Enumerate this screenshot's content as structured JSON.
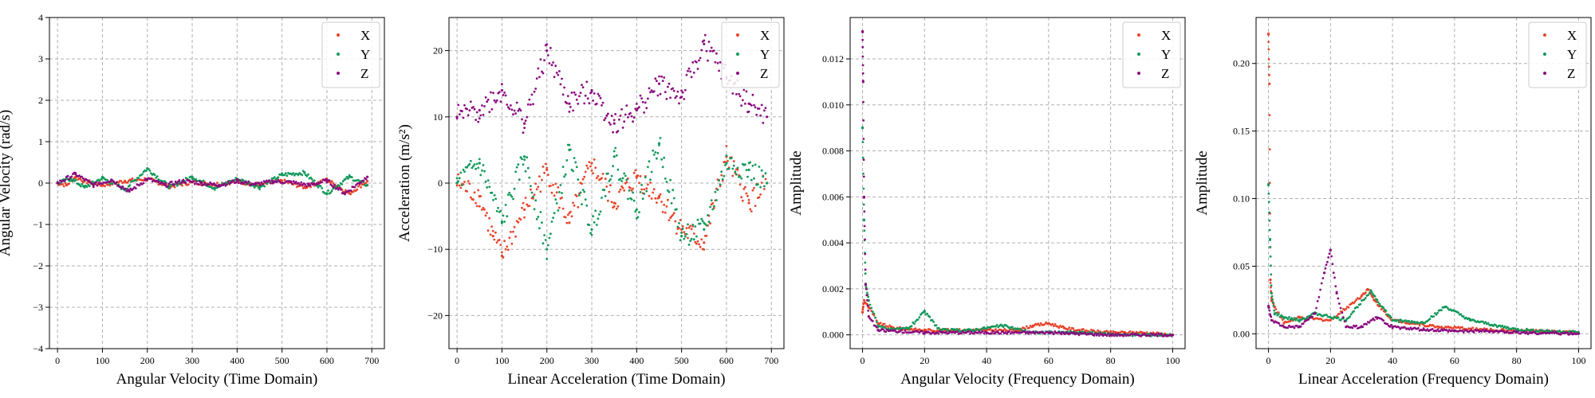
{
  "colors": {
    "X": "#e8432a",
    "Y": "#12985a",
    "Z": "#8b0a7f"
  },
  "chart_data": [
    {
      "type": "scatter",
      "xlabel": "Angular Velocity (Time Domain)",
      "ylabel": "Angular Velocity (rad/s)",
      "xlim": [
        -18,
        728
      ],
      "ylim": [
        -4,
        4
      ],
      "xticks": [
        0,
        100,
        200,
        300,
        400,
        500,
        600,
        700
      ],
      "yticks": [
        -4,
        -3,
        -2,
        -1,
        0,
        1,
        2,
        3,
        4
      ],
      "grid": true,
      "legend": "top-right",
      "series": [
        {
          "name": "X",
          "x": [
            0,
            20,
            40,
            60,
            100,
            150,
            200,
            250,
            300,
            350,
            400,
            450,
            500,
            550,
            600,
            650,
            690
          ],
          "y": [
            0,
            -0.05,
            0.15,
            0.05,
            -0.05,
            0.05,
            0.1,
            -0.08,
            0.02,
            -0.03,
            0.04,
            -0.05,
            0.05,
            -0.1,
            0.08,
            -0.25,
            0.05
          ]
        },
        {
          "name": "Y",
          "x": [
            0,
            30,
            60,
            100,
            150,
            200,
            250,
            300,
            350,
            400,
            450,
            500,
            550,
            600,
            650,
            690
          ],
          "y": [
            0,
            0.1,
            -0.1,
            0.12,
            -0.15,
            0.35,
            -0.1,
            0.15,
            -0.12,
            0.1,
            -0.1,
            0.2,
            0.25,
            -0.25,
            0.15,
            -0.05
          ]
        },
        {
          "name": "Z",
          "x": [
            0,
            40,
            80,
            120,
            160,
            200,
            240,
            280,
            320,
            360,
            400,
            440,
            480,
            520,
            560,
            600,
            640,
            690
          ],
          "y": [
            0,
            0.22,
            -0.05,
            0.08,
            -0.2,
            0.1,
            -0.05,
            0.05,
            0.0,
            -0.05,
            0.05,
            -0.03,
            0.04,
            0.02,
            -0.05,
            0.06,
            -0.25,
            0.15
          ]
        }
      ]
    },
    {
      "type": "scatter",
      "xlabel": "Linear Acceleration (Time Domain)",
      "ylabel": "Acceleration (m/s²)",
      "xlim": [
        -18,
        728
      ],
      "ylim": [
        -25,
        25
      ],
      "xticks": [
        0,
        100,
        200,
        300,
        400,
        500,
        600,
        700
      ],
      "yticks": [
        -20,
        -10,
        0,
        10,
        20
      ],
      "grid": true,
      "legend": "top-right",
      "series": [
        {
          "name": "X",
          "x": [
            0,
            50,
            80,
            100,
            150,
            200,
            250,
            300,
            350,
            400,
            450,
            500,
            550,
            600,
            650,
            690
          ],
          "y": [
            0,
            -2,
            -8,
            -11,
            -4,
            2,
            -6,
            3,
            -3,
            1,
            -2,
            -7,
            -9,
            4,
            -3,
            0
          ]
        },
        {
          "name": "Y",
          "x": [
            0,
            50,
            100,
            150,
            200,
            250,
            300,
            350,
            400,
            450,
            500,
            550,
            600,
            650,
            690
          ],
          "y": [
            0,
            3,
            -6,
            4,
            -10,
            5,
            -7,
            4,
            -4,
            6,
            -8,
            -7,
            3,
            2,
            0
          ]
        },
        {
          "name": "Z",
          "x": [
            0,
            50,
            100,
            150,
            200,
            250,
            300,
            350,
            400,
            450,
            500,
            550,
            600,
            650,
            690
          ],
          "y": [
            10,
            11,
            14,
            9,
            20,
            12,
            14,
            9,
            11,
            15,
            13,
            21,
            16,
            12,
            10
          ]
        }
      ]
    },
    {
      "type": "scatter",
      "xlabel": "Angular Velocity (Frequency Domain)",
      "ylabel": "Amplitude",
      "xlim": [
        -4,
        104
      ],
      "ylim": [
        -0.0006,
        0.0138
      ],
      "xticks": [
        0,
        20,
        40,
        60,
        80,
        100
      ],
      "yticks": [
        0.0,
        0.002,
        0.004,
        0.006,
        0.008,
        0.01,
        0.012
      ],
      "ytick_labels": [
        "0.000",
        "0.002",
        "0.004",
        "0.006",
        "0.008",
        "0.010",
        "0.012"
      ],
      "grid": true,
      "legend": "top-right",
      "series": [
        {
          "name": "X",
          "x": [
            0,
            0.5,
            2,
            5,
            10,
            20,
            30,
            40,
            50,
            55,
            60,
            65,
            70,
            80,
            90,
            100
          ],
          "y": [
            0.001,
            0.0015,
            0.0012,
            0.0005,
            0.0003,
            0.0002,
            0.0002,
            0.0002,
            0.0002,
            0.0004,
            0.0005,
            0.0003,
            0.0002,
            0.0001,
            0.0001,
            0.0
          ]
        },
        {
          "name": "Y",
          "x": [
            0,
            0.5,
            1,
            2,
            5,
            10,
            15,
            20,
            25,
            35,
            45,
            55,
            70,
            85,
            100
          ],
          "y": [
            0.009,
            0.005,
            0.0022,
            0.0015,
            0.0004,
            0.0002,
            0.0003,
            0.001,
            0.0002,
            0.0002,
            0.0004,
            0.0001,
            0.0001,
            0.0,
            0.0
          ]
        },
        {
          "name": "Z",
          "x": [
            0,
            0.2,
            0.5,
            1,
            2,
            5,
            20,
            40,
            60,
            80,
            100
          ],
          "y": [
            0.0132,
            0.011,
            0.006,
            0.0022,
            0.0008,
            0.0002,
            0.0001,
            0.0001,
            0.0001,
            0.0,
            0.0
          ]
        }
      ]
    },
    {
      "type": "scatter",
      "xlabel": "Linear Acceleration (Frequency Domain)",
      "ylabel": "Amplitude",
      "xlim": [
        -4,
        104
      ],
      "ylim": [
        -0.011,
        0.234
      ],
      "xticks": [
        0,
        20,
        40,
        60,
        80,
        100
      ],
      "yticks": [
        0.0,
        0.05,
        0.1,
        0.15,
        0.2
      ],
      "ytick_labels": [
        "0.00",
        "0.05",
        "0.10",
        "0.15",
        "0.20"
      ],
      "grid": true,
      "legend": "top-right",
      "series": [
        {
          "name": "X",
          "x": [
            0,
            0.3,
            0.6,
            1,
            2,
            5,
            10,
            20,
            30,
            32,
            34,
            40,
            55,
            70,
            85,
            100
          ],
          "y": [
            0.222,
            0.185,
            0.04,
            0.025,
            0.02,
            0.008,
            0.012,
            0.01,
            0.028,
            0.033,
            0.025,
            0.01,
            0.005,
            0.003,
            0.002,
            0.001
          ]
        },
        {
          "name": "Y",
          "x": [
            0,
            0.5,
            1,
            2,
            5,
            10,
            15,
            25,
            33,
            35,
            40,
            50,
            57,
            65,
            80,
            100
          ],
          "y": [
            0.11,
            0.07,
            0.03,
            0.015,
            0.012,
            0.01,
            0.015,
            0.01,
            0.032,
            0.025,
            0.01,
            0.008,
            0.02,
            0.01,
            0.003,
            0.001
          ]
        },
        {
          "name": "Z",
          "x": [
            0,
            1,
            5,
            10,
            15,
            18,
            20,
            22,
            25,
            30,
            35,
            40,
            50,
            60,
            70,
            80,
            100
          ],
          "y": [
            0.02,
            0.01,
            0.005,
            0.005,
            0.015,
            0.045,
            0.062,
            0.03,
            0.005,
            0.005,
            0.012,
            0.005,
            0.003,
            0.002,
            0.002,
            0.001,
            0.0
          ]
        }
      ]
    }
  ]
}
